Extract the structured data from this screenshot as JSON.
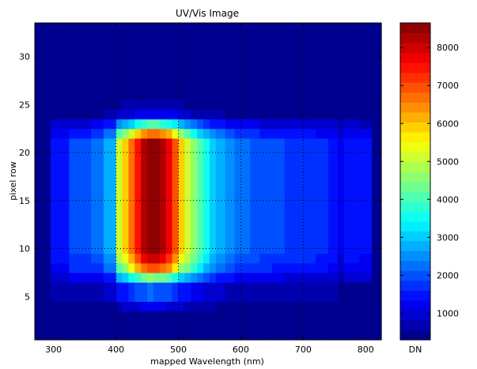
{
  "chart_data": {
    "type": "heatmap",
    "title": "UV/Vis Image",
    "xlabel": "mapped Wavelength (nm)",
    "ylabel": "pixel row",
    "xlim": [
      270,
      825
    ],
    "ylim": [
      0.5,
      33.5
    ],
    "x_ticks": [
      300,
      400,
      500,
      600,
      700,
      800
    ],
    "y_ticks": [
      5,
      10,
      15,
      20,
      25,
      30
    ],
    "x_gridlines": [
      400,
      500,
      600,
      700
    ],
    "y_gridlines": [
      10,
      15,
      20
    ],
    "grid": "dotted",
    "colorbar": {
      "label": "DN",
      "range": [
        300,
        8650
      ],
      "ticks": [
        1000,
        2000,
        3000,
        4000,
        5000,
        6000,
        7000,
        8000
      ],
      "colormap": "jet",
      "levels": 32,
      "placement": "right"
    },
    "background_value": 300,
    "x_edges": [
      270,
      295,
      325,
      360,
      380,
      400,
      410,
      420,
      430,
      440,
      450,
      460,
      470,
      480,
      490,
      500,
      510,
      520,
      530,
      540,
      550,
      560,
      575,
      590,
      600,
      615,
      630,
      650,
      670,
      690,
      700,
      720,
      740,
      755,
      765,
      790,
      810,
      825
    ],
    "row_profile": [
      [
        0.5,
        1.5,
        0.0
      ],
      [
        1.5,
        3.5,
        0.02
      ],
      [
        3.5,
        4.5,
        0.1
      ],
      [
        4.5,
        6.5,
        0.22
      ],
      [
        6.5,
        7.5,
        0.5
      ],
      [
        7.5,
        8.5,
        0.8
      ],
      [
        8.5,
        9.5,
        0.93
      ],
      [
        9.5,
        21.5,
        1.0
      ],
      [
        21.5,
        22.5,
        0.78
      ],
      [
        22.5,
        23.5,
        0.45
      ],
      [
        23.5,
        24.5,
        0.12
      ],
      [
        24.5,
        25.5,
        0.05
      ],
      [
        25.5,
        33.5,
        0.0
      ]
    ],
    "column_profile": [
      [
        270,
        295,
        0.0
      ],
      [
        295,
        325,
        0.15
      ],
      [
        325,
        360,
        0.2
      ],
      [
        360,
        380,
        0.23
      ],
      [
        380,
        400,
        0.29
      ],
      [
        400,
        410,
        0.58
      ],
      [
        410,
        420,
        0.66
      ],
      [
        420,
        430,
        0.75
      ],
      [
        430,
        440,
        0.87
      ],
      [
        440,
        450,
        0.95
      ],
      [
        450,
        460,
        1.0
      ],
      [
        460,
        470,
        0.99
      ],
      [
        470,
        480,
        0.96
      ],
      [
        480,
        490,
        0.9
      ],
      [
        490,
        500,
        0.79
      ],
      [
        500,
        510,
        0.66
      ],
      [
        510,
        520,
        0.59
      ],
      [
        520,
        530,
        0.52
      ],
      [
        530,
        540,
        0.44
      ],
      [
        540,
        550,
        0.39
      ],
      [
        550,
        560,
        0.33
      ],
      [
        560,
        575,
        0.29
      ],
      [
        575,
        590,
        0.25
      ],
      [
        590,
        600,
        0.23
      ],
      [
        600,
        615,
        0.22
      ],
      [
        615,
        630,
        0.21
      ],
      [
        630,
        650,
        0.2
      ],
      [
        650,
        670,
        0.19
      ],
      [
        670,
        690,
        0.18
      ],
      [
        690,
        700,
        0.17
      ],
      [
        700,
        720,
        0.17
      ],
      [
        720,
        740,
        0.16
      ],
      [
        740,
        755,
        0.15
      ],
      [
        755,
        765,
        0.1
      ],
      [
        765,
        790,
        0.14
      ],
      [
        790,
        810,
        0.13
      ],
      [
        810,
        825,
        0.0
      ]
    ]
  }
}
